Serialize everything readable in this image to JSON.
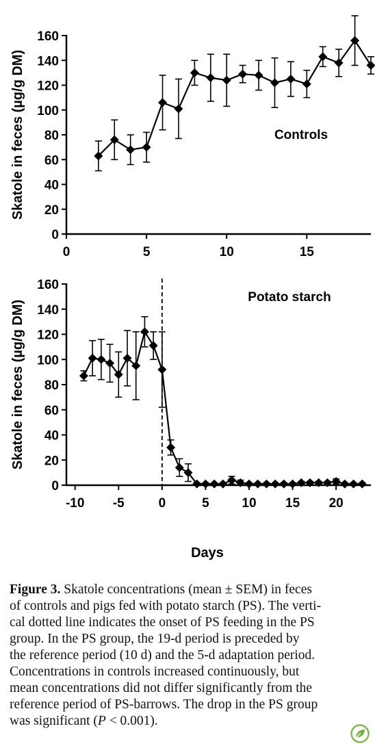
{
  "chart_data": [
    {
      "type": "line",
      "panel_label": "Controls",
      "ylabel": "Skatole in feces (µg/g DM)",
      "xlabel": "",
      "xlim": [
        0,
        19
      ],
      "ylim": [
        0,
        160
      ],
      "xticks": [
        0,
        5,
        10,
        15
      ],
      "yticks": [
        0,
        20,
        40,
        60,
        80,
        100,
        120,
        140,
        160
      ],
      "marker": "diamond",
      "series": [
        {
          "x": [
            2,
            3,
            4,
            5,
            6,
            7,
            8,
            9,
            10,
            11,
            12,
            13,
            14,
            15,
            16,
            17,
            18,
            19
          ],
          "y": [
            63,
            76,
            68,
            70,
            106,
            101,
            130,
            126,
            124,
            129,
            128,
            122,
            125,
            121,
            143,
            138,
            156,
            136
          ],
          "err": [
            12,
            16,
            12,
            12,
            22,
            24,
            10,
            19,
            21,
            7,
            12,
            20,
            14,
            11,
            8,
            11,
            20,
            7
          ]
        }
      ]
    },
    {
      "type": "line",
      "panel_label": "Potato starch",
      "ylabel": "Skatole in feces (µg/g DM)",
      "xlabel": "Days",
      "xlim": [
        -11,
        24
      ],
      "ylim": [
        0,
        160
      ],
      "xticks": [
        -10,
        -5,
        0,
        5,
        10,
        15,
        20
      ],
      "yticks": [
        0,
        20,
        40,
        60,
        80,
        100,
        120,
        140,
        160
      ],
      "marker": "diamond",
      "dashed_vline_x": 0,
      "series": [
        {
          "x": [
            -9,
            -8,
            -7,
            -6,
            -5,
            -4,
            -3,
            -2,
            -1,
            0,
            1,
            2,
            3,
            4,
            5,
            6,
            7,
            8,
            9,
            10,
            11,
            12,
            13,
            14,
            15,
            16,
            17,
            18,
            19,
            20,
            21,
            22,
            23
          ],
          "y": [
            87,
            101,
            100,
            97,
            88,
            101,
            95,
            122,
            111,
            92,
            30,
            14,
            10,
            1,
            1,
            1,
            1,
            4,
            2,
            1,
            1,
            1,
            1,
            1,
            1,
            2,
            2,
            2,
            2,
            3,
            1,
            1,
            1
          ],
          "err": [
            4,
            14,
            16,
            15,
            18,
            22,
            27,
            12,
            11,
            30,
            6,
            7,
            7,
            1,
            1,
            1,
            1,
            3,
            2,
            1,
            1,
            1,
            1,
            1,
            1,
            1,
            1,
            1,
            1,
            2,
            1,
            1,
            1
          ]
        }
      ]
    }
  ],
  "caption": {
    "label": "Figure 3.",
    "line1": " Skatole concentrations (mean ± SEM) in feces",
    "line2": "of controls and pigs fed with potato starch (PS). The verti-",
    "line3": "cal dotted line indicates the onset of PS feeding in the PS",
    "line4": "group. In the PS group, the 19-d period is preceded by",
    "line5": "the reference period (10 d) and the 5-d adaptation period.",
    "line6": "Concentrations in controls increased continuously, but",
    "line7": "mean concentrations did not differ significantly from the",
    "line8": "reference period of PS-barrows. The drop in the PS group",
    "line9_pre": "was significant (",
    "line9_italic": "P",
    "line9_post": " < 0.001)."
  },
  "colors": {
    "ink": "#000000",
    "logo": "#6fb43a"
  },
  "icons": {
    "journal_logo": "leaf-logo-icon"
  }
}
